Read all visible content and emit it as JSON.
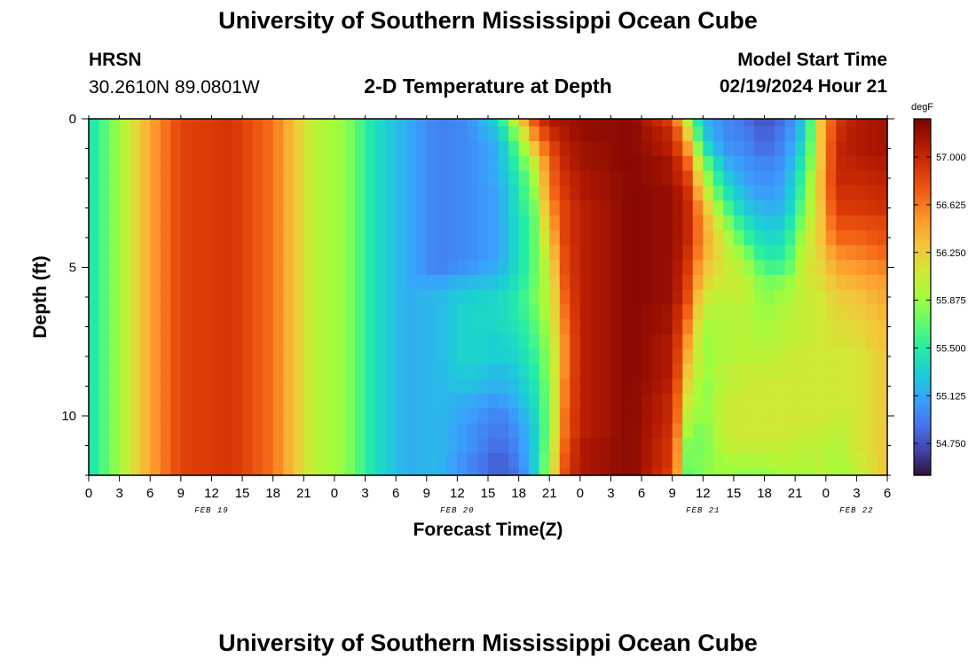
{
  "page": {
    "title_top": "University of Southern Mississippi Ocean Cube",
    "title_bottom": "University of Southern Mississippi Ocean Cube",
    "station": "HRSN",
    "coords": "30.2610N  89.0801W",
    "subtitle": "2-D Temperature at Depth",
    "model_label": "Model Start Time",
    "model_time": "02/19/2024 Hour 21"
  },
  "chart_data": {
    "type": "heatmap",
    "title": "2-D Temperature at Depth",
    "xlabel": "Forecast Time(Z)",
    "ylabel": "Depth (ft)",
    "colorbar_unit": "degF",
    "x_start_hour": 0,
    "x_end_hour": 78,
    "x_tick_labels": [
      "0",
      "3",
      "6",
      "9",
      "12",
      "15",
      "18",
      "21",
      "0",
      "3",
      "6",
      "9",
      "12",
      "15",
      "18",
      "21",
      "0",
      "3",
      "6",
      "9",
      "12",
      "15",
      "18",
      "21",
      "0",
      "3",
      "6"
    ],
    "date_labels": [
      {
        "text": "FEB 19",
        "hour": 12
      },
      {
        "text": "FEB 20",
        "hour": 36
      },
      {
        "text": "FEB 21",
        "hour": 60
      },
      {
        "text": "FEB 22",
        "hour": 75
      }
    ],
    "y_range": [
      0,
      12
    ],
    "y_ticks": [
      0,
      5,
      10
    ],
    "y_tick_labels": [
      "0",
      "5",
      "10"
    ],
    "colorbar_ticks": [
      54.75,
      55.125,
      55.5,
      55.875,
      56.25,
      56.625,
      57.0
    ],
    "colorbar_tick_labels": [
      "54.750",
      "55.125",
      "55.500",
      "55.875",
      "56.250",
      "56.625",
      "57.000"
    ],
    "colorbar_range": [
      54.5,
      57.3
    ],
    "colormap": [
      "#30123b",
      "#4145ab",
      "#4675ed",
      "#39a2fc",
      "#1bcfd4",
      "#24eca6",
      "#61fc6c",
      "#a4fc3b",
      "#d1e834",
      "#f3c63a",
      "#fe9b2d",
      "#f36315",
      "#d93806",
      "#b11901",
      "#7a0402"
    ],
    "levels_ft": [
      0,
      0.5,
      1,
      1.5,
      2,
      2.5,
      3,
      3.5,
      4,
      4.5,
      5,
      5.5,
      6,
      6.5,
      7,
      7.5,
      8,
      8.5,
      9,
      9.5,
      10,
      10.5,
      11,
      11.5,
      12
    ],
    "keyframes": [
      {
        "hour": 0,
        "temps": [
          55.4,
          55.4,
          55.4,
          55.4,
          55.4,
          55.4,
          55.4,
          55.4,
          55.4,
          55.4,
          55.4,
          55.4,
          55.4,
          55.4,
          55.4,
          55.4,
          55.4,
          55.4,
          55.4,
          55.4,
          55.4,
          55.4,
          55.4,
          55.4,
          55.4
        ]
      },
      {
        "hour": 3,
        "temps": [
          55.9,
          55.9,
          55.9,
          55.9,
          55.9,
          55.9,
          55.9,
          55.9,
          55.9,
          55.9,
          55.9,
          55.9,
          55.9,
          55.9,
          55.9,
          55.9,
          55.9,
          55.9,
          55.9,
          55.9,
          55.9,
          55.9,
          55.9,
          55.9,
          55.9
        ]
      },
      {
        "hour": 6,
        "temps": [
          56.45,
          56.45,
          56.45,
          56.45,
          56.45,
          56.45,
          56.45,
          56.45,
          56.45,
          56.45,
          56.45,
          56.45,
          56.45,
          56.45,
          56.45,
          56.45,
          56.45,
          56.45,
          56.45,
          56.45,
          56.45,
          56.45,
          56.45,
          56.45,
          56.45
        ]
      },
      {
        "hour": 9,
        "temps": [
          56.85,
          56.85,
          56.85,
          56.85,
          56.85,
          56.85,
          56.85,
          56.85,
          56.85,
          56.85,
          56.85,
          56.85,
          56.85,
          56.85,
          56.85,
          56.85,
          56.85,
          56.85,
          56.85,
          56.85,
          56.85,
          56.85,
          56.85,
          56.85,
          56.85
        ]
      },
      {
        "hour": 14,
        "temps": [
          56.92,
          56.92,
          56.92,
          56.92,
          56.92,
          56.92,
          56.92,
          56.92,
          56.92,
          56.92,
          56.92,
          56.92,
          56.92,
          56.92,
          56.92,
          56.92,
          56.92,
          56.92,
          56.92,
          56.92,
          56.92,
          56.92,
          56.92,
          56.92,
          56.92
        ]
      },
      {
        "hour": 18,
        "temps": [
          56.65,
          56.65,
          56.65,
          56.65,
          56.65,
          56.65,
          56.65,
          56.65,
          56.65,
          56.65,
          56.65,
          56.65,
          56.65,
          56.65,
          56.65,
          56.65,
          56.65,
          56.65,
          56.65,
          56.65,
          56.65,
          56.65,
          56.65,
          56.65,
          56.65
        ]
      },
      {
        "hour": 22,
        "temps": [
          56.0,
          56.0,
          56.0,
          56.0,
          56.0,
          56.0,
          56.0,
          56.0,
          56.0,
          56.0,
          56.0,
          56.0,
          56.0,
          56.0,
          56.0,
          56.0,
          56.0,
          56.0,
          56.0,
          56.0,
          56.0,
          56.0,
          56.0,
          56.0,
          56.0
        ]
      },
      {
        "hour": 25,
        "temps": [
          55.85,
          55.85,
          55.85,
          55.85,
          55.85,
          55.85,
          55.85,
          55.85,
          55.85,
          55.85,
          55.85,
          55.85,
          55.85,
          55.85,
          55.85,
          55.85,
          55.85,
          55.85,
          55.85,
          55.85,
          55.85,
          55.85,
          55.85,
          55.85,
          55.85
        ]
      },
      {
        "hour": 28,
        "temps": [
          55.4,
          55.4,
          55.4,
          55.4,
          55.4,
          55.4,
          55.4,
          55.4,
          55.4,
          55.4,
          55.4,
          55.4,
          55.4,
          55.4,
          55.4,
          55.4,
          55.4,
          55.4,
          55.4,
          55.4,
          55.4,
          55.4,
          55.4,
          55.4,
          55.4
        ]
      },
      {
        "hour": 31,
        "temps": [
          55.15,
          55.15,
          55.15,
          55.15,
          55.15,
          55.15,
          55.15,
          55.15,
          55.15,
          55.15,
          55.15,
          55.15,
          55.15,
          55.15,
          55.15,
          55.15,
          55.15,
          55.15,
          55.15,
          55.15,
          55.15,
          55.15,
          55.15,
          55.15,
          55.15
        ]
      },
      {
        "hour": 34,
        "temps": [
          54.95,
          54.95,
          54.95,
          54.95,
          54.95,
          54.95,
          54.95,
          54.95,
          54.95,
          54.95,
          54.95,
          55.1,
          55.2,
          55.2,
          55.2,
          55.2,
          55.2,
          55.2,
          55.2,
          55.2,
          55.2,
          55.2,
          55.2,
          55.2,
          55.2
        ]
      },
      {
        "hour": 37,
        "temps": [
          55.0,
          55.0,
          55.0,
          55.0,
          55.0,
          55.0,
          55.0,
          55.0,
          55.0,
          55.0,
          55.05,
          55.2,
          55.3,
          55.35,
          55.35,
          55.35,
          55.35,
          55.3,
          55.25,
          55.15,
          55.1,
          55.05,
          55.05,
          55.0,
          55.0
        ]
      },
      {
        "hour": 40,
        "temps": [
          55.35,
          55.25,
          55.15,
          55.15,
          55.15,
          55.1,
          55.1,
          55.1,
          55.1,
          55.1,
          55.15,
          55.25,
          55.35,
          55.35,
          55.35,
          55.3,
          55.3,
          55.2,
          55.15,
          55.05,
          54.95,
          54.9,
          54.85,
          54.8,
          54.8
        ]
      },
      {
        "hour": 42,
        "temps": [
          56.2,
          55.9,
          55.7,
          55.6,
          55.5,
          55.45,
          55.45,
          55.4,
          55.4,
          55.4,
          55.4,
          55.45,
          55.5,
          55.5,
          55.45,
          55.4,
          55.35,
          55.3,
          55.25,
          55.2,
          55.1,
          55.05,
          55.0,
          54.95,
          54.9
        ]
      },
      {
        "hour": 43.5,
        "temps": [
          56.75,
          56.55,
          56.3,
          56.05,
          55.9,
          55.85,
          55.75,
          55.7,
          55.7,
          55.7,
          55.7,
          55.72,
          55.75,
          55.7,
          55.65,
          55.6,
          55.55,
          55.5,
          55.45,
          55.4,
          55.35,
          55.3,
          55.3,
          55.3,
          55.3
        ]
      },
      {
        "hour": 45,
        "temps": [
          57.1,
          56.95,
          56.8,
          56.7,
          56.65,
          56.6,
          56.5,
          56.4,
          56.3,
          56.2,
          56.1,
          56.05,
          56.0,
          56.0,
          55.95,
          55.9,
          55.85,
          55.85,
          55.8,
          55.8,
          55.8,
          55.8,
          55.85,
          55.9,
          55.95
        ]
      },
      {
        "hour": 46.5,
        "temps": [
          57.15,
          57.1,
          57.05,
          57.0,
          56.95,
          56.9,
          56.85,
          56.85,
          56.85,
          56.8,
          56.8,
          56.75,
          56.7,
          56.65,
          56.6,
          56.55,
          56.55,
          56.55,
          56.6,
          56.6,
          56.65,
          56.65,
          56.7,
          56.75,
          56.8
        ]
      },
      {
        "hour": 48,
        "temps": [
          57.2,
          57.2,
          57.15,
          57.15,
          57.1,
          57.1,
          57.05,
          57.05,
          57.05,
          57.05,
          57.05,
          57.05,
          57.05,
          57.05,
          57.05,
          57.05,
          57.05,
          57.05,
          57.05,
          57.05,
          57.05,
          57.05,
          57.1,
          57.1,
          57.1
        ]
      },
      {
        "hour": 53,
        "temps": [
          57.25,
          57.25,
          57.25,
          57.25,
          57.25,
          57.25,
          57.25,
          57.25,
          57.25,
          57.25,
          57.25,
          57.25,
          57.25,
          57.25,
          57.25,
          57.25,
          57.25,
          57.25,
          57.25,
          57.25,
          57.25,
          57.25,
          57.25,
          57.25,
          57.25
        ]
      },
      {
        "hour": 57,
        "temps": [
          56.85,
          57.0,
          57.05,
          57.15,
          57.15,
          57.2,
          57.2,
          57.2,
          57.2,
          57.2,
          57.2,
          57.2,
          57.2,
          57.15,
          57.15,
          57.1,
          57.1,
          57.1,
          57.05,
          57.0,
          57.0,
          56.95,
          56.9,
          56.9,
          56.85
        ]
      },
      {
        "hour": 58.5,
        "temps": [
          56.0,
          56.25,
          56.5,
          56.7,
          56.85,
          56.95,
          57.0,
          57.0,
          57.0,
          56.95,
          56.9,
          56.85,
          56.8,
          56.7,
          56.6,
          56.5,
          56.4,
          56.3,
          56.2,
          56.1,
          56.0,
          55.9,
          55.8,
          55.75,
          55.7
        ]
      },
      {
        "hour": 60,
        "temps": [
          55.2,
          55.3,
          55.5,
          55.8,
          56.0,
          56.2,
          56.4,
          56.5,
          56.5,
          56.45,
          56.35,
          56.25,
          56.1,
          56.0,
          55.9,
          55.85,
          55.85,
          55.85,
          55.8,
          55.8,
          55.8,
          55.75,
          55.75,
          55.8,
          55.8
        ]
      },
      {
        "hour": 62,
        "temps": [
          55.0,
          55.0,
          55.05,
          55.2,
          55.35,
          55.5,
          55.7,
          55.9,
          56.05,
          56.1,
          56.1,
          56.05,
          56.0,
          55.95,
          55.95,
          55.95,
          55.95,
          56.0,
          56.0,
          56.05,
          56.05,
          56.05,
          56.0,
          55.9,
          55.9
        ]
      },
      {
        "hour": 64,
        "temps": [
          54.9,
          54.95,
          55.0,
          55.05,
          55.1,
          55.2,
          55.3,
          55.45,
          55.6,
          55.8,
          55.95,
          56.05,
          56.05,
          56.0,
          56.0,
          56.0,
          56.0,
          56.05,
          56.05,
          56.1,
          56.1,
          56.1,
          56.05,
          55.95,
          55.85
        ]
      },
      {
        "hour": 66,
        "temps": [
          54.75,
          54.8,
          54.85,
          54.95,
          55.0,
          55.05,
          55.15,
          55.25,
          55.35,
          55.45,
          55.6,
          55.75,
          55.8,
          55.85,
          55.9,
          55.95,
          56.0,
          56.05,
          56.1,
          56.1,
          56.1,
          56.1,
          56.05,
          55.95,
          55.85
        ]
      },
      {
        "hour": 68,
        "temps": [
          54.9,
          54.95,
          55.0,
          55.05,
          55.1,
          55.15,
          55.2,
          55.3,
          55.4,
          55.5,
          55.6,
          55.8,
          55.9,
          55.95,
          56.0,
          56.0,
          56.05,
          56.05,
          56.1,
          56.1,
          56.1,
          56.1,
          56.05,
          56.0,
          55.95
        ]
      },
      {
        "hour": 70,
        "temps": [
          55.3,
          55.35,
          55.45,
          55.55,
          55.65,
          55.7,
          55.8,
          55.9,
          56.0,
          56.05,
          56.1,
          56.1,
          56.05,
          56.05,
          56.05,
          56.05,
          56.1,
          56.1,
          56.1,
          56.1,
          56.1,
          56.05,
          56.0,
          55.95,
          55.9
        ]
      },
      {
        "hour": 71.5,
        "temps": [
          56.3,
          56.3,
          56.3,
          56.3,
          56.35,
          56.35,
          56.3,
          56.3,
          56.3,
          56.25,
          56.2,
          56.15,
          56.1,
          56.1,
          56.1,
          56.1,
          56.1,
          56.1,
          56.1,
          56.1,
          56.1,
          56.05,
          56.0,
          56.0,
          56.0
        ]
      },
      {
        "hour": 73,
        "temps": [
          56.9,
          56.95,
          57.0,
          57.0,
          57.0,
          56.95,
          56.9,
          56.8,
          56.7,
          56.55,
          56.45,
          56.35,
          56.25,
          56.2,
          56.15,
          56.15,
          56.1,
          56.1,
          56.1,
          56.1,
          56.05,
          56.0,
          55.95,
          55.9,
          55.9
        ]
      },
      {
        "hour": 75,
        "temps": [
          57.1,
          57.1,
          57.1,
          57.05,
          57.0,
          56.95,
          56.9,
          56.8,
          56.7,
          56.6,
          56.5,
          56.4,
          56.3,
          56.25,
          56.2,
          56.15,
          56.1,
          56.1,
          56.1,
          56.1,
          56.1,
          56.1,
          56.1,
          56.05,
          56.0
        ]
      },
      {
        "hour": 78,
        "temps": [
          57.15,
          57.15,
          57.15,
          57.1,
          57.05,
          57.0,
          56.95,
          56.85,
          56.8,
          56.7,
          56.6,
          56.5,
          56.45,
          56.4,
          56.35,
          56.35,
          56.3,
          56.3,
          56.3,
          56.3,
          56.3,
          56.3,
          56.3,
          56.3,
          56.3
        ]
      }
    ]
  }
}
